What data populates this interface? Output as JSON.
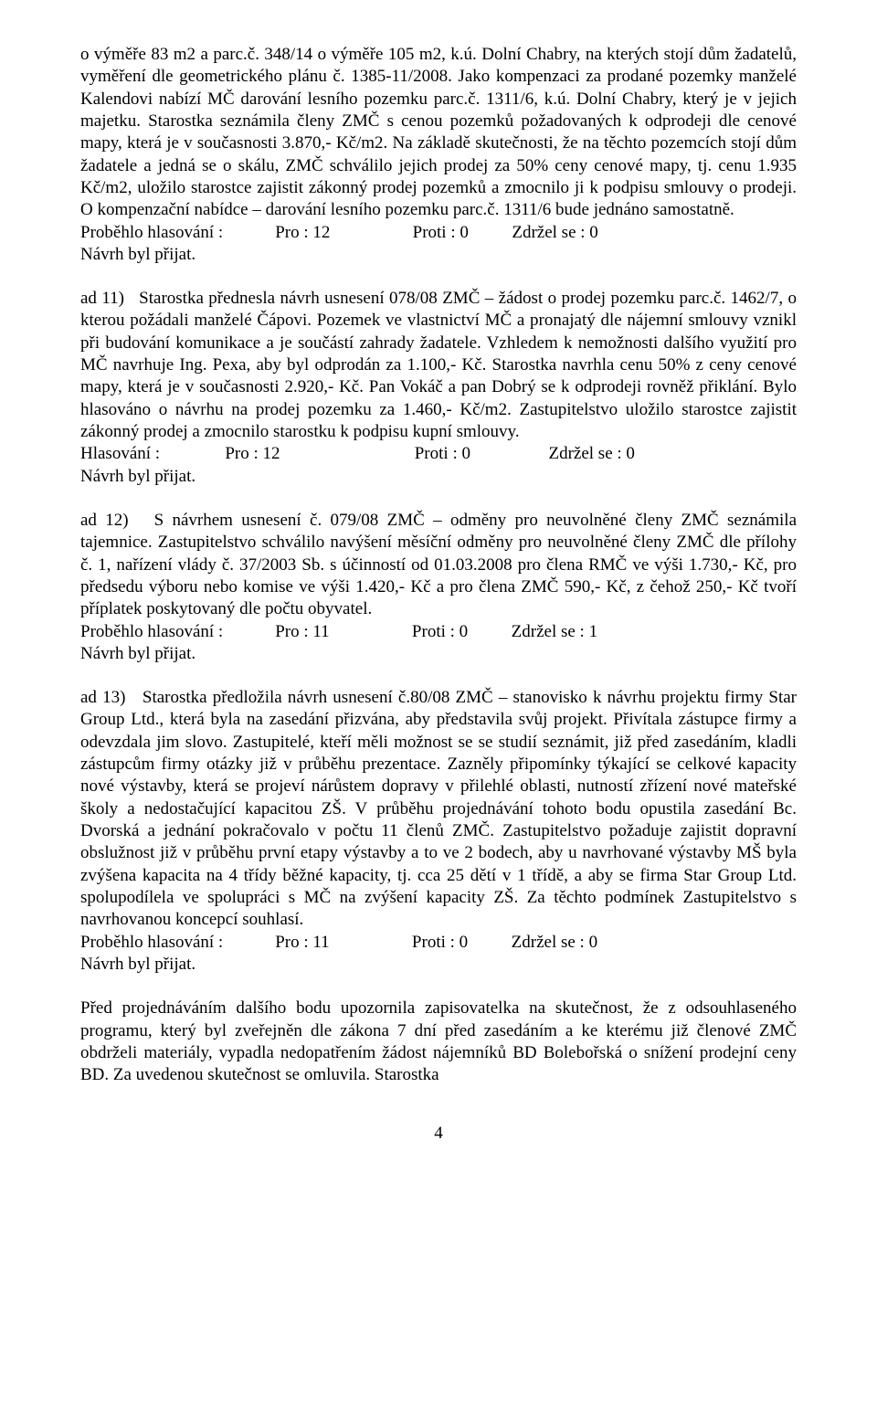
{
  "para1": {
    "text": "o výměře 83 m2 a parc.č. 348/14 o výměře 105 m2, k.ú. Dolní Chabry, na kterých stojí dům žadatelů, vyměření dle geometrického plánu č. 1385-11/2008. Jako kompenzaci za prodané pozemky manželé Kalendovi nabízí MČ darování lesního pozemku parc.č. 1311/6, k.ú. Dolní Chabry, který je v jejich majetku. Starostka seznámila členy ZMČ s cenou pozemků požadovaných k odprodeji dle cenové mapy, která je v současnosti 3.870,- Kč/m2. Na základě skutečnosti, že na těchto pozemcích stojí dům žadatele a jedná se o skálu, ZMČ schválilo jejich prodej za 50% ceny cenové mapy, tj. cenu 1.935 Kč/m2, uložilo starostce zajistit zákonný prodej pozemků a zmocnilo ji k podpisu smlouvy o prodeji. O kompenzační nabídce – darování lesního pozemku parc.č. 1311/6 bude jednáno samostatně."
  },
  "vote1": {
    "line": "Proběhlo hlasování :            Pro : 12                   Proti : 0          Zdržel se : 0",
    "accepted": "Návrh byl přijat."
  },
  "para2": {
    "text": "ad 11)   Starostka přednesla návrh usnesení 078/08 ZMČ – žádost o prodej pozemku parc.č. 1462/7, o kterou požádali manželé Čápovi. Pozemek ve vlastnictví MČ a pronajatý dle nájemní smlouvy vznikl při budování komunikace a je součástí zahrady žadatele. Vzhledem k nemožnosti dalšího využití pro MČ navrhuje Ing. Pexa, aby byl odprodán za 1.100,- Kč. Starostka navrhla cenu 50% z ceny cenové mapy, která je v současnosti 2.920,- Kč. Pan Vokáč a pan Dobrý se k odprodeji rovněž přiklání. Bylo hlasováno o návrhu na prodej pozemku za 1.460,- Kč/m2. Zastupitelstvo uložilo starostce zajistit zákonný prodej a zmocnilo starostku k podpisu kupní smlouvy."
  },
  "vote2": {
    "line": "Hlasování :               Pro : 12                               Proti : 0                  Zdržel se : 0",
    "accepted": "Návrh byl přijat."
  },
  "para3": {
    "text": "ad 12)   S návrhem usnesení č. 079/08 ZMČ – odměny pro neuvolněné členy ZMČ seznámila tajemnice. Zastupitelstvo schválilo navýšení měsíční odměny pro neuvolněné členy ZMČ dle přílohy č. 1, nařízení vlády č. 37/2003 Sb. s účinností od 01.03.2008 pro člena RMČ ve výši 1.730,- Kč, pro předsedu výboru nebo komise ve výši 1.420,- Kč a pro člena ZMČ 590,- Kč, z čehož 250,- Kč tvoří příplatek poskytovaný dle počtu obyvatel."
  },
  "vote3": {
    "line": "Proběhlo hlasování :            Pro : 11                   Proti : 0          Zdržel se : 1",
    "accepted": "Návrh byl přijat."
  },
  "para4": {
    "text": "ad 13)   Starostka předložila návrh usnesení č.80/08 ZMČ – stanovisko k návrhu projektu firmy Star Group Ltd., která byla na zasedání přizvána, aby představila svůj projekt. Přivítala zástupce firmy a odevzdala jim slovo. Zastupitelé, kteří měli možnost se se studií seznámit, již před zasedáním, kladli zástupcům firmy otázky již v průběhu prezentace. Zazněly připomínky týkající se celkové kapacity nové výstavby, která se projeví nárůstem dopravy v přilehlé oblasti, nutností zřízení nové mateřské školy a nedostačující kapacitou ZŠ. V průběhu projednávání tohoto bodu opustila zasedání Bc. Dvorská a jednání pokračovalo v počtu 11 členů ZMČ. Zastupitelstvo požaduje zajistit dopravní obslužnost již v průběhu první etapy výstavby a to ve 2 bodech, aby u navrhované výstavby MŠ byla zvýšena kapacita na 4 třídy běžné kapacity, tj. cca 25 dětí v 1 třídě, a aby se firma Star Group Ltd. spolupodílela ve spolupráci s MČ na zvýšení kapacity ZŠ. Za těchto podmínek Zastupitelstvo s navrhovanou koncepcí souhlasí."
  },
  "vote4": {
    "line": "Proběhlo hlasování :            Pro : 11                   Proti : 0          Zdržel se : 0",
    "accepted": "Návrh byl přijat."
  },
  "para5": {
    "text": "Před projednáváním dalšího bodu upozornila zapisovatelka na skutečnost, že z odsouhlaseného programu, který byl zveřejněn dle zákona 7 dní před zasedáním a ke kterému již členové ZMČ obdrželi materiály, vypadla nedopatřením žádost nájemníků BD Bolebořská o snížení prodejní ceny BD. Za uvedenou skutečnost se omluvila. Starostka"
  },
  "page_number": "4"
}
